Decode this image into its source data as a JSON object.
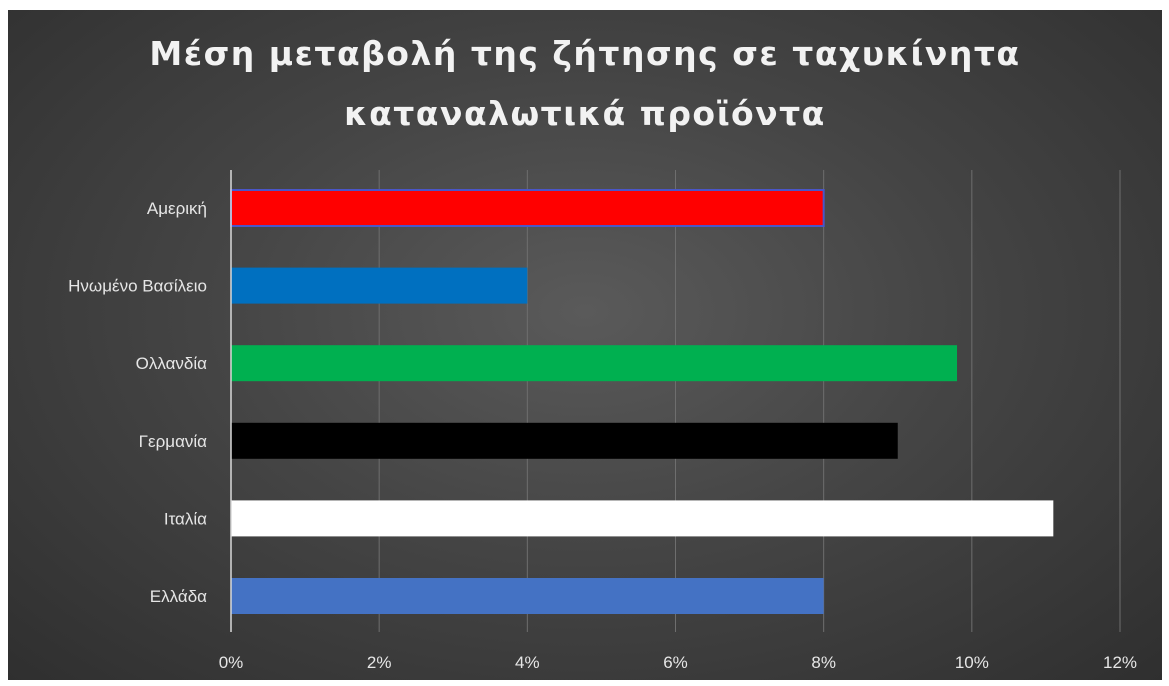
{
  "chart_data": {
    "type": "bar",
    "orientation": "horizontal",
    "title_lines": [
      "Μέση μεταβολή της ζήτησης σε ταχυκίνητα",
      "καταναλωτικά προϊόντα"
    ],
    "categories": [
      "Αμερική",
      "Ηνωμένο Βασίλειο",
      "Ολλανδία",
      "Γερμανία",
      "Ιταλία",
      "Ελλάδα"
    ],
    "values": [
      8,
      4,
      9.8,
      9,
      11.1,
      8
    ],
    "bar_colors": [
      "#ff0000",
      "#0070c0",
      "#00b050",
      "#000000",
      "#ffffff",
      "#4472c4"
    ],
    "xlim": [
      0,
      12
    ],
    "x_ticks": [
      0,
      2,
      4,
      6,
      8,
      10,
      12
    ],
    "x_tick_labels": [
      "0%",
      "2%",
      "4%",
      "6%",
      "8%",
      "10%",
      "12%"
    ],
    "grid": true,
    "legend": "none"
  }
}
